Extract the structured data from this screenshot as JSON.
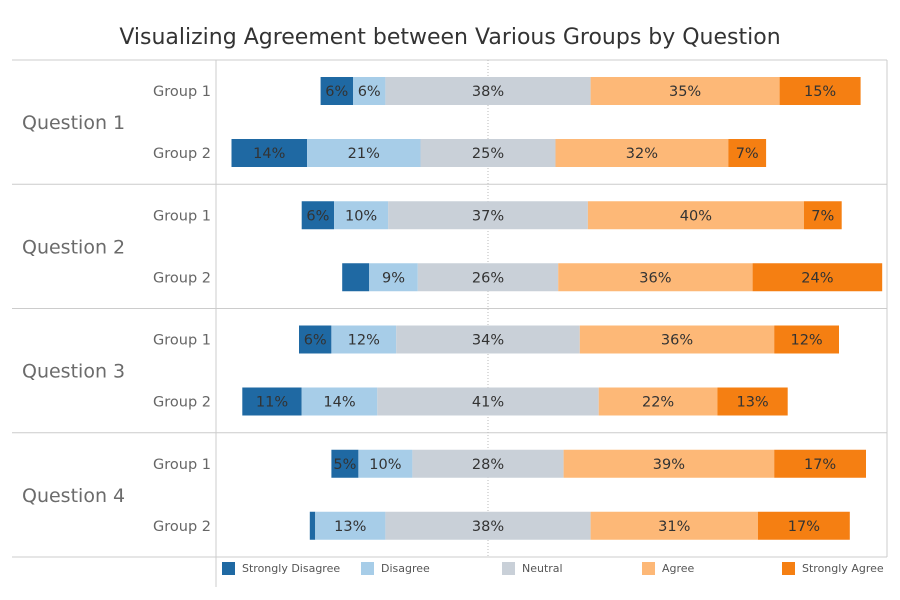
{
  "chart_data": {
    "type": "bar",
    "orientation": "horizontal",
    "stacked": "diverging",
    "title": "Visualizing Agreement between Various Groups by Question",
    "categories": [
      "Strongly Disagree",
      "Disagree",
      "Neutral",
      "Agree",
      "Strongly Agree"
    ],
    "colors": [
      "#1f69a3",
      "#a7cde8",
      "#c9d0d8",
      "#fdb877",
      "#f57f12"
    ],
    "legend_placement": "bottom",
    "groups": [
      {
        "name": "Question 1",
        "rows": [
          {
            "name": "Group 1",
            "values": [
              6,
              6,
              38,
              35,
              15
            ],
            "labels": [
              "6%",
              "6%",
              "38%",
              "35%",
              "15%"
            ]
          },
          {
            "name": "Group 2",
            "values": [
              14,
              21,
              25,
              32,
              7
            ],
            "labels": [
              "14%",
              "21%",
              "25%",
              "32%",
              "7%"
            ]
          }
        ]
      },
      {
        "name": "Question 2",
        "rows": [
          {
            "name": "Group 1",
            "values": [
              6,
              10,
              37,
              40,
              7
            ],
            "labels": [
              "6%",
              "10%",
              "37%",
              "40%",
              "7%"
            ]
          },
          {
            "name": "Group 2",
            "values": [
              5,
              9,
              26,
              36,
              24
            ],
            "labels": [
              "",
              "9%",
              "26%",
              "36%",
              "24%"
            ]
          }
        ]
      },
      {
        "name": "Question 3",
        "rows": [
          {
            "name": "Group 1",
            "values": [
              6,
              12,
              34,
              36,
              12
            ],
            "labels": [
              "6%",
              "12%",
              "34%",
              "36%",
              "12%"
            ]
          },
          {
            "name": "Group 2",
            "values": [
              11,
              14,
              41,
              22,
              13
            ],
            "labels": [
              "11%",
              "14%",
              "41%",
              "22%",
              "13%"
            ]
          }
        ]
      },
      {
        "name": "Question 4",
        "rows": [
          {
            "name": "Group 1",
            "values": [
              5,
              10,
              28,
              39,
              17
            ],
            "labels": [
              "5%",
              "10%",
              "28%",
              "39%",
              "17%"
            ]
          },
          {
            "name": "Group 2",
            "values": [
              1,
              13,
              38,
              31,
              17
            ],
            "labels": [
              "",
              "13%",
              "38%",
              "31%",
              "17%"
            ]
          }
        ]
      }
    ]
  }
}
